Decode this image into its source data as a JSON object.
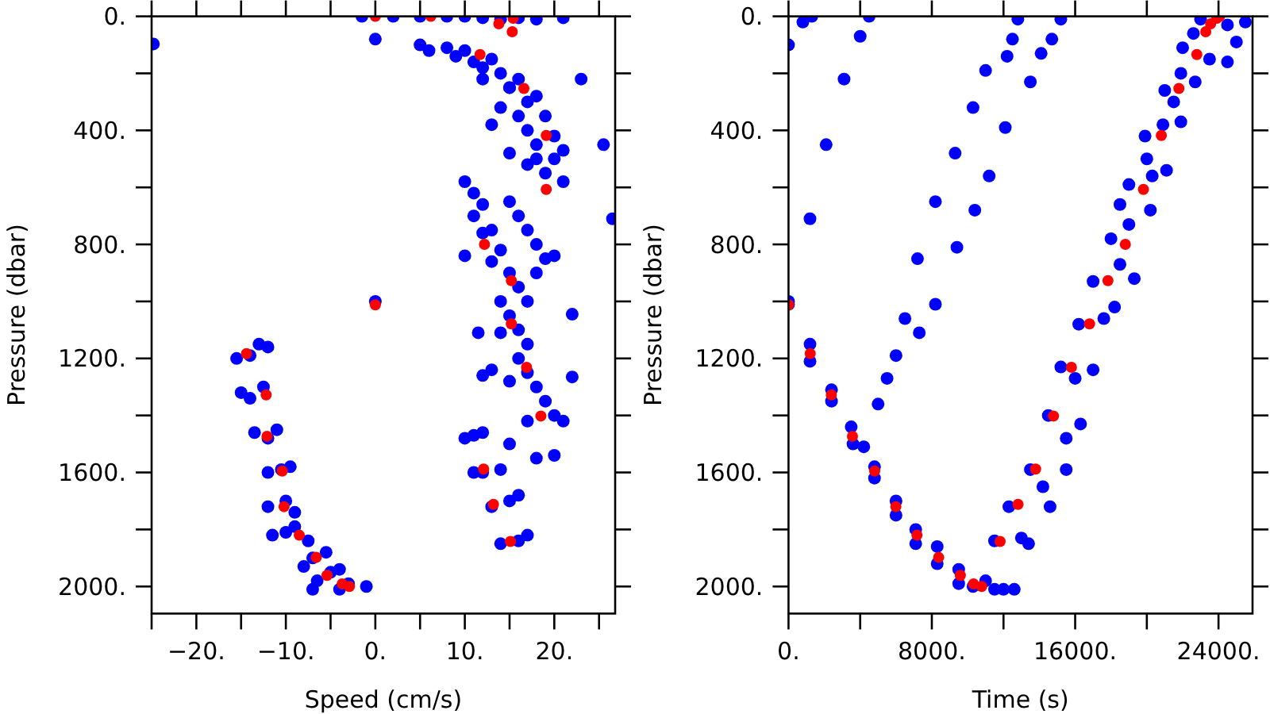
{
  "chart_data": [
    {
      "type": "scatter",
      "xlabel": "Speed (cm/s)",
      "ylabel": "Pressure (dbar)",
      "xlim": [
        -25,
        26.8
      ],
      "ylim": [
        2095,
        0
      ],
      "marker": "circle",
      "grid": false,
      "xticks": [
        {
          "value": -25,
          "label": null
        },
        {
          "value": -20,
          "label": "−20."
        },
        {
          "value": -15,
          "label": null
        },
        {
          "value": -10,
          "label": "−10."
        },
        {
          "value": -5,
          "label": null
        },
        {
          "value": 0,
          "label": "0."
        },
        {
          "value": 5,
          "label": null
        },
        {
          "value": 10,
          "label": "10."
        },
        {
          "value": 15,
          "label": null
        },
        {
          "value": 20,
          "label": "20."
        },
        {
          "value": 25,
          "label": null
        }
      ],
      "yticks": [
        {
          "value": 0,
          "label": "0."
        },
        {
          "value": 200,
          "label": null
        },
        {
          "value": 400,
          "label": "400."
        },
        {
          "value": 600,
          "label": null
        },
        {
          "value": 800,
          "label": "800."
        },
        {
          "value": 1000,
          "label": null
        },
        {
          "value": 1200,
          "label": "1200."
        },
        {
          "value": 1400,
          "label": null
        },
        {
          "value": 1600,
          "label": "1600."
        },
        {
          "value": 1800,
          "label": null
        },
        {
          "value": 2000,
          "label": "2000."
        }
      ],
      "series": [
        {
          "color": "#0000ff",
          "x": [
            -1.5,
            2,
            5,
            8,
            10,
            12,
            14,
            16,
            18,
            21,
            -24.8,
            0,
            5,
            6,
            8,
            9,
            10,
            11,
            12,
            13,
            14,
            15,
            16,
            17,
            18,
            16,
            17,
            18,
            19,
            20,
            19,
            21,
            14,
            13,
            15,
            12,
            17,
            20,
            21,
            23,
            25.5,
            26.5,
            15,
            18,
            10,
            11,
            11,
            12,
            13,
            14,
            12,
            13,
            15,
            16,
            14,
            15,
            16,
            17,
            18,
            19,
            20,
            22,
            10,
            15,
            16,
            17,
            18,
            17,
            14,
            11.5,
            16,
            17,
            18,
            15,
            13,
            12,
            19,
            20,
            17,
            21,
            22,
            11,
            10,
            12,
            15,
            18,
            20,
            12,
            14,
            11,
            13,
            15,
            16,
            14,
            16,
            17,
            -15.5,
            -13,
            -14,
            -12,
            -15,
            -12.5,
            -14,
            -13.5,
            -11,
            -12,
            -10.5,
            -12,
            -9.5,
            -12,
            -10,
            -9,
            -11.5,
            -9,
            -7.5,
            -10,
            -7,
            -5.5,
            -8,
            -5,
            -6.5,
            -4,
            -3,
            -1,
            -4,
            -7,
            0
          ],
          "values": [
            0,
            0,
            0,
            0,
            0,
            5,
            10,
            5,
            10,
            5,
            97,
            80,
            100,
            120,
            110,
            140,
            120,
            160,
            180,
            150,
            200,
            250,
            220,
            300,
            280,
            350,
            400,
            450,
            350,
            500,
            550,
            580,
            320,
            380,
            480,
            220,
            520,
            420,
            470,
            220,
            450,
            710,
            250,
            500,
            580,
            620,
            700,
            660,
            750,
            820,
            760,
            860,
            900,
            950,
            1000,
            1050,
            1100,
            1000,
            900,
            850,
            840,
            1045,
            840,
            650,
            700,
            750,
            800,
            1150,
            1110,
            1110,
            1200,
            1250,
            1300,
            1280,
            1240,
            1260,
            1350,
            1400,
            1420,
            1420,
            1265,
            1470,
            1480,
            1460,
            1500,
            1550,
            1540,
            1600,
            1590,
            1600,
            1720,
            1700,
            1680,
            1850,
            1840,
            1820,
            1200,
            1150,
            1190,
            1160,
            1320,
            1300,
            1340,
            1460,
            1450,
            1480,
            1590,
            1600,
            1580,
            1720,
            1700,
            1740,
            1820,
            1790,
            1840,
            1810,
            1900,
            1880,
            1930,
            1950,
            1980,
            1940,
            1990,
            2000,
            2010,
            2010,
            1000
          ]
        },
        {
          "color": "#ff0000",
          "x": [
            0,
            6.2,
            13.8,
            15.4,
            15.3,
            11.7,
            16.6,
            19.1,
            19.1,
            12.2,
            15.2,
            15.2,
            16.9,
            18.5,
            12.1,
            13.2,
            15.1,
            0,
            -14.4,
            -12.2,
            -12.1,
            -10.4,
            -10.2,
            -8.5,
            -6.6,
            -5.4,
            -3.7,
            -2.9
          ],
          "values": [
            0,
            0,
            26,
            7,
            54,
            134,
            253,
            418,
            607,
            800,
            927,
            1079,
            1231,
            1402,
            1588,
            1712,
            1842,
            1012,
            1183,
            1328,
            1473,
            1595,
            1720,
            1820,
            1898,
            1961,
            1991,
            2000
          ]
        }
      ]
    },
    {
      "type": "scatter",
      "xlabel": "Time (s)",
      "ylabel": "Pressure (dbar)",
      "xlim": [
        0,
        25900
      ],
      "ylim": [
        2095,
        0
      ],
      "marker": "circle",
      "grid": false,
      "xticks": [
        {
          "value": 0,
          "label": "0."
        },
        {
          "value": 4000,
          "label": null
        },
        {
          "value": 8000,
          "label": "8000."
        },
        {
          "value": 12000,
          "label": null
        },
        {
          "value": 16000,
          "label": "16000."
        },
        {
          "value": 20000,
          "label": null
        },
        {
          "value": 24000,
          "label": "24000."
        }
      ],
      "yticks": [
        {
          "value": 0,
          "label": "0."
        },
        {
          "value": 200,
          "label": null
        },
        {
          "value": 400,
          "label": "400."
        },
        {
          "value": 600,
          "label": null
        },
        {
          "value": 800,
          "label": "800."
        },
        {
          "value": 1000,
          "label": null
        },
        {
          "value": 1200,
          "label": "1200."
        },
        {
          "value": 1400,
          "label": null
        },
        {
          "value": 1600,
          "label": "1600."
        },
        {
          "value": 1800,
          "label": null
        },
        {
          "value": 2000,
          "label": "2000."
        }
      ],
      "series": [
        {
          "color": "#0000ff",
          "x": [
            0,
            800,
            1300,
            1200,
            3100,
            2100,
            4000,
            4500,
            0,
            0,
            1200,
            1200,
            2400,
            2400,
            3500,
            3600,
            4200,
            4800,
            4800,
            6000,
            6000,
            7100,
            7100,
            8300,
            8300,
            9500,
            9500,
            10300,
            11000,
            11500,
            12000,
            12600,
            6500,
            5500,
            5000,
            6000,
            7200,
            7300,
            8200,
            8200,
            9400,
            9300,
            10300,
            10400,
            11200,
            11000,
            12200,
            12100,
            12500,
            12800,
            13500,
            14100,
            14700,
            15200,
            11500,
            13000,
            13400,
            12300,
            14600,
            13500,
            15500,
            14200,
            14500,
            15500,
            16300,
            15200,
            16000,
            17000,
            16200,
            17600,
            18200,
            17000,
            18500,
            19300,
            18000,
            19000,
            20200,
            20300,
            19000,
            21100,
            19900,
            20900,
            21900,
            21000,
            21900,
            22700,
            22000,
            23500,
            24500,
            23000,
            24500,
            25500,
            22600,
            25000,
            20000,
            18500,
            21500
          ],
          "values": [
            100,
            20,
            0,
            710,
            220,
            450,
            70,
            0,
            1000,
            1010,
            1150,
            1210,
            1310,
            1350,
            1440,
            1500,
            1510,
            1580,
            1620,
            1700,
            1750,
            1800,
            1850,
            1860,
            1920,
            1940,
            1990,
            2000,
            1980,
            2010,
            2010,
            2010,
            1060,
            1270,
            1360,
            1190,
            850,
            1110,
            1010,
            650,
            810,
            480,
            320,
            680,
            560,
            190,
            140,
            390,
            80,
            10,
            230,
            130,
            80,
            10,
            1840,
            1830,
            1850,
            1720,
            1720,
            1590,
            1590,
            1650,
            1400,
            1480,
            1430,
            1230,
            1270,
            1240,
            1080,
            1060,
            1020,
            930,
            870,
            920,
            780,
            730,
            680,
            560,
            590,
            540,
            420,
            380,
            370,
            260,
            200,
            230,
            110,
            150,
            160,
            10,
            30,
            20,
            60,
            90,
            500,
            660,
            300
          ]
        },
        {
          "color": "#ff0000",
          "x": [
            0,
            1210,
            2390,
            3570,
            4810,
            5990,
            7170,
            8380,
            9590,
            10330,
            10780,
            11810,
            12810,
            13790,
            14790,
            15790,
            16800,
            17830,
            18800,
            19810,
            20810,
            21790,
            22790,
            23290,
            23560,
            23910,
            24060
          ],
          "values": [
            1012,
            1183,
            1328,
            1473,
            1595,
            1720,
            1820,
            1898,
            1961,
            1991,
            2000,
            1842,
            1712,
            1588,
            1402,
            1231,
            1079,
            927,
            800,
            607,
            418,
            253,
            134,
            54,
            26,
            7,
            0
          ]
        }
      ]
    }
  ]
}
